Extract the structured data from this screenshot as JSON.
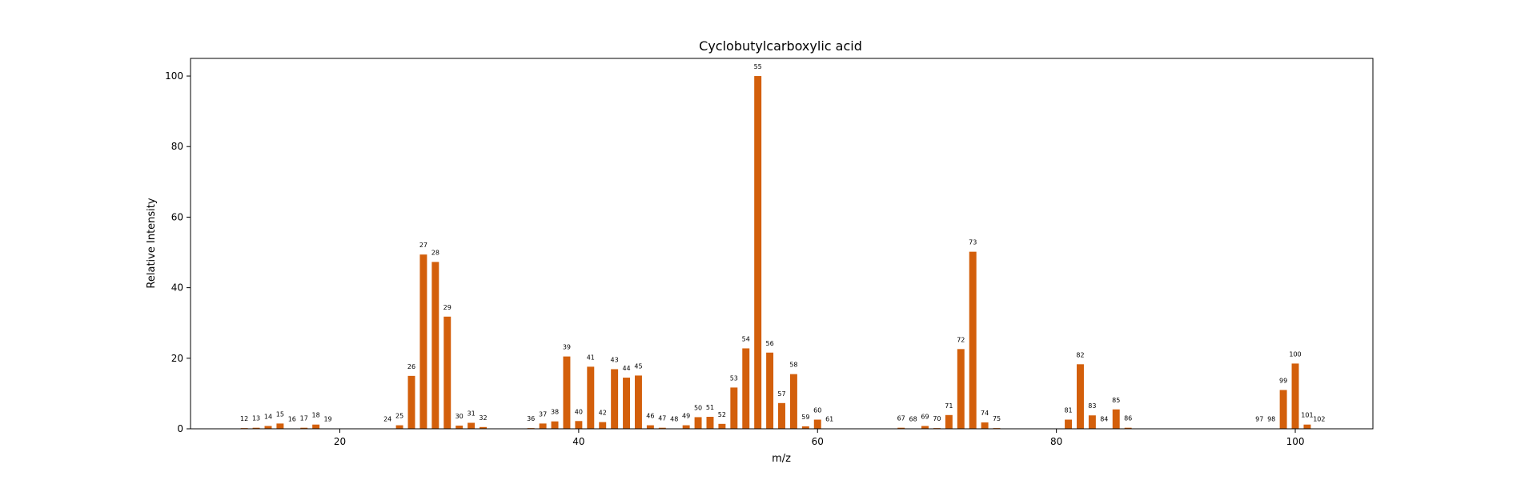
{
  "chart_data": {
    "type": "bar",
    "title": "Cyclobutylcarboxylic acid",
    "xlabel": "m/z",
    "ylabel": "Relative Intensity",
    "xlim": [
      7.5,
      106.5
    ],
    "ylim": [
      0,
      105
    ],
    "xticks": [
      20,
      40,
      60,
      80,
      100
    ],
    "yticks": [
      0,
      20,
      40,
      60,
      80,
      100
    ],
    "grid": false,
    "bar_color": "#d35f0b",
    "points": [
      {
        "x": 12,
        "y": 0.2
      },
      {
        "x": 13,
        "y": 0.3
      },
      {
        "x": 14,
        "y": 0.8
      },
      {
        "x": 15,
        "y": 1.5
      },
      {
        "x": 16,
        "y": 0.1
      },
      {
        "x": 17,
        "y": 0.3
      },
      {
        "x": 18,
        "y": 1.2
      },
      {
        "x": 19,
        "y": 0.1
      },
      {
        "x": 24,
        "y": 0.1
      },
      {
        "x": 25,
        "y": 1.0
      },
      {
        "x": 26,
        "y": 15.0
      },
      {
        "x": 27,
        "y": 49.4
      },
      {
        "x": 28,
        "y": 47.3
      },
      {
        "x": 29,
        "y": 31.8
      },
      {
        "x": 30,
        "y": 0.9
      },
      {
        "x": 31,
        "y": 1.7
      },
      {
        "x": 32,
        "y": 0.5
      },
      {
        "x": 36,
        "y": 0.2
      },
      {
        "x": 37,
        "y": 1.5
      },
      {
        "x": 38,
        "y": 2.1
      },
      {
        "x": 39,
        "y": 20.5
      },
      {
        "x": 40,
        "y": 2.2
      },
      {
        "x": 41,
        "y": 17.6
      },
      {
        "x": 42,
        "y": 1.9
      },
      {
        "x": 43,
        "y": 16.9
      },
      {
        "x": 44,
        "y": 14.5
      },
      {
        "x": 45,
        "y": 15.1
      },
      {
        "x": 46,
        "y": 1.0
      },
      {
        "x": 47,
        "y": 0.3
      },
      {
        "x": 48,
        "y": 0.1
      },
      {
        "x": 49,
        "y": 1.0
      },
      {
        "x": 50,
        "y": 3.3
      },
      {
        "x": 51,
        "y": 3.4
      },
      {
        "x": 52,
        "y": 1.4
      },
      {
        "x": 53,
        "y": 11.7
      },
      {
        "x": 54,
        "y": 22.8
      },
      {
        "x": 55,
        "y": 100.0
      },
      {
        "x": 56,
        "y": 21.6
      },
      {
        "x": 57,
        "y": 7.3
      },
      {
        "x": 58,
        "y": 15.5
      },
      {
        "x": 59,
        "y": 0.7
      },
      {
        "x": 60,
        "y": 2.6
      },
      {
        "x": 61,
        "y": 0.1
      },
      {
        "x": 67,
        "y": 0.3
      },
      {
        "x": 68,
        "y": 0.1
      },
      {
        "x": 69,
        "y": 0.8
      },
      {
        "x": 70,
        "y": 0.2
      },
      {
        "x": 71,
        "y": 3.9
      },
      {
        "x": 72,
        "y": 22.6
      },
      {
        "x": 73,
        "y": 50.2
      },
      {
        "x": 74,
        "y": 1.8
      },
      {
        "x": 75,
        "y": 0.2
      },
      {
        "x": 81,
        "y": 2.6
      },
      {
        "x": 82,
        "y": 18.3
      },
      {
        "x": 83,
        "y": 3.8
      },
      {
        "x": 84,
        "y": 0.1
      },
      {
        "x": 85,
        "y": 5.5
      },
      {
        "x": 86,
        "y": 0.3
      },
      {
        "x": 97,
        "y": 0.1
      },
      {
        "x": 98,
        "y": 0.1
      },
      {
        "x": 99,
        "y": 11.0
      },
      {
        "x": 100,
        "y": 18.5
      },
      {
        "x": 101,
        "y": 1.2
      },
      {
        "x": 102,
        "y": 0.1
      }
    ]
  }
}
